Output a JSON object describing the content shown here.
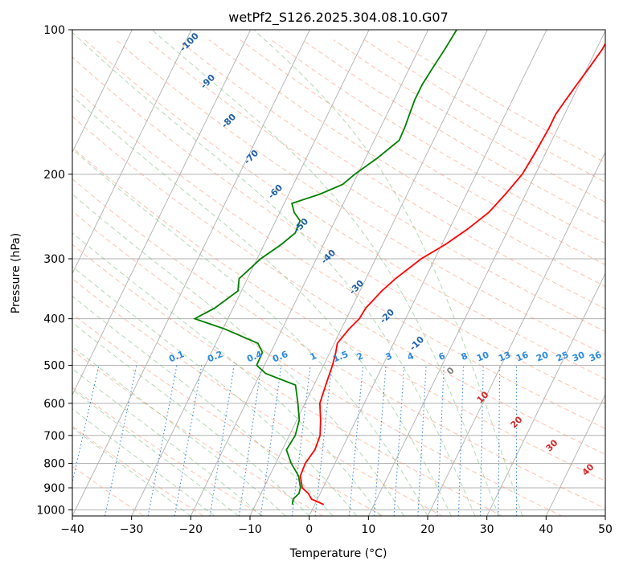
{
  "chart_data": {
    "type": "line",
    "title": "wetPf2_S126.2025.304.08.10.G07",
    "xlabel": "Temperature (°C)",
    "ylabel": "Pressure (hPa)",
    "xlim": [
      -40,
      50
    ],
    "ylim": [
      1030,
      100
    ],
    "y_scale": "log",
    "grid": true,
    "x_ticks": [
      -40,
      -30,
      -20,
      -10,
      0,
      10,
      20,
      30,
      40,
      50
    ],
    "y_ticks": [
      100,
      200,
      300,
      400,
      500,
      600,
      700,
      800,
      900,
      1000
    ],
    "colors": {
      "temperature": "#ff0000",
      "dewpoint": "#008000",
      "skewed_isotherm": "#b0b0b0",
      "dry_adiabat": "#ff8c66",
      "moist_adiabat": "#66b366",
      "mixing_ratio": "#1f77d4"
    },
    "series": [
      {
        "color": "#ff0000",
        "p": [
          975,
          950,
          925,
          900,
          850,
          800,
          750,
          700,
          650,
          600,
          550,
          500,
          470,
          450,
          420,
          400,
          380,
          350,
          330,
          300,
          280,
          260,
          240,
          220,
          200,
          180,
          160,
          150,
          140,
          130,
          120,
          110,
          100
        ],
        "t": [
          1.5,
          -1.0,
          -2.0,
          -3.5,
          -4.8,
          -5.0,
          -4.5,
          -4.8,
          -6.0,
          -7.5,
          -8.0,
          -8.5,
          -9.0,
          -9.5,
          -8.7,
          -7.8,
          -7.6,
          -6.3,
          -5.0,
          -2.3,
          0.6,
          3.1,
          5.3,
          6.6,
          7.8,
          8.2,
          8.5,
          8.5,
          9.0,
          9.6,
          10.3,
          11.0,
          11.2
        ]
      },
      {
        "color": "#008000",
        "p": [
          975,
          950,
          925,
          900,
          850,
          800,
          750,
          700,
          650,
          600,
          550,
          520,
          500,
          470,
          450,
          420,
          400,
          380,
          350,
          330,
          300,
          280,
          265,
          250,
          240,
          230,
          220,
          210,
          200,
          185,
          170,
          160,
          150,
          140,
          130,
          120,
          110,
          100
        ],
        "t": [
          -3.8,
          -4.1,
          -3.6,
          -3.8,
          -5.1,
          -7.4,
          -9.3,
          -9.0,
          -9.6,
          -11.2,
          -13.1,
          -19.1,
          -21.3,
          -21.4,
          -22.9,
          -29.7,
          -35.6,
          -33.1,
          -30.6,
          -31.4,
          -29.4,
          -27.1,
          -25.7,
          -25.9,
          -27.6,
          -28.7,
          -24.7,
          -21.7,
          -20.5,
          -18.0,
          -15.8,
          -15.9,
          -16.2,
          -16.5,
          -16.5,
          -16.1,
          -15.6,
          -15.2
        ]
      }
    ],
    "isotherm_labels": [
      "-100",
      "-90",
      "-80",
      "-70",
      "-60",
      "-50",
      "-40",
      "-30",
      "-20",
      "-10"
    ],
    "mixing_ratio_labels": [
      "0.1",
      "0.2",
      "0.4",
      "0.6",
      "1",
      "1.5",
      "2",
      "3",
      "4",
      "6",
      "8",
      "10",
      "13",
      "16",
      "20",
      "25",
      "30",
      "36"
    ],
    "warm_isotherm_labels": [
      "0",
      "10",
      "20",
      "30",
      "40"
    ]
  }
}
